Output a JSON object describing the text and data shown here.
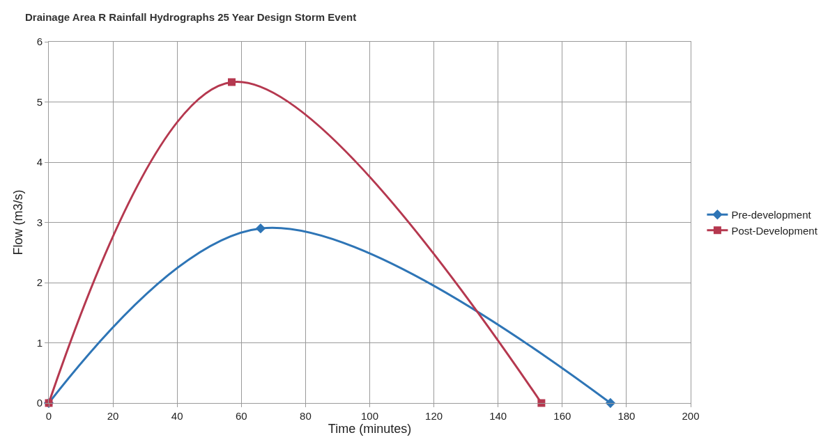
{
  "chart_data": {
    "type": "line",
    "title": "Drainage Area R Rainfall Hydrographs 25 Year Design Storm Event",
    "xlabel": "Time (minutes)",
    "ylabel": "Flow (m3/s)",
    "series": [
      {
        "name": "Pre-development",
        "color": "#2e75b6",
        "marker": "diamond",
        "x": [
          0,
          66,
          175
        ],
        "values": [
          0,
          2.9,
          0
        ]
      },
      {
        "name": "Post-Development",
        "color": "#b5384f",
        "marker": "square",
        "x": [
          0,
          57,
          153.5
        ],
        "values": [
          0,
          5.33,
          0
        ]
      }
    ],
    "xlim": [
      0,
      200
    ],
    "xticks": [
      0,
      20,
      40,
      60,
      80,
      100,
      120,
      140,
      160,
      180,
      200
    ],
    "ylim": [
      0,
      6
    ],
    "yticks": [
      0,
      1,
      2,
      3,
      4,
      5,
      6
    ],
    "grid": true,
    "legend": "right",
    "line_style": "solid"
  }
}
